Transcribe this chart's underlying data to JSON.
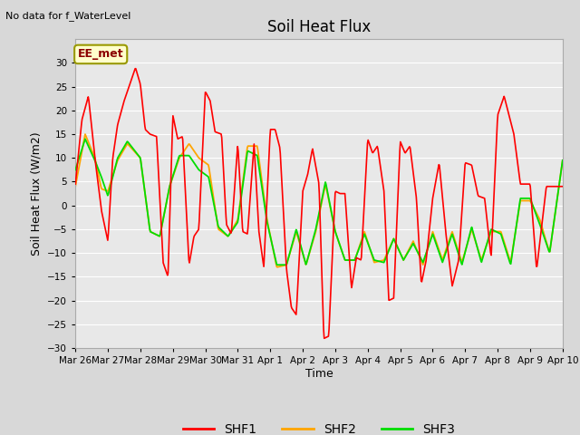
{
  "title": "Soil Heat Flux",
  "ylabel": "Soil Heat Flux (W/m2)",
  "xlabel": "Time",
  "note": "No data for f_WaterLevel",
  "annotation": "EE_met",
  "ylim": [
    -30,
    35
  ],
  "yticks": [
    -30,
    -25,
    -20,
    -15,
    -10,
    -5,
    0,
    5,
    10,
    15,
    20,
    25,
    30
  ],
  "bg_color": "#d8d8d8",
  "plot_bg_color": "#e8e8e8",
  "grid_color": "#ffffff",
  "shf1_color": "#ff0000",
  "shf2_color": "#ffa500",
  "shf3_color": "#00dd00",
  "xtick_labels": [
    "Mar 26",
    "Mar 27",
    "Mar 28",
    "Mar 29",
    "Mar 30",
    "Mar 31",
    "Apr 1",
    "Apr 2",
    "Apr 3",
    "Apr 4",
    "Apr 5",
    "Apr 6",
    "Apr 7",
    "Apr 8",
    "Apr 9",
    "Apr 10"
  ],
  "shf1_x": [
    0.0,
    0.2,
    0.4,
    0.6,
    0.8,
    1.0,
    1.15,
    1.3,
    1.5,
    1.7,
    1.85,
    2.0,
    2.15,
    2.3,
    2.5,
    2.7,
    2.85,
    3.0,
    3.15,
    3.3,
    3.5,
    3.65,
    3.8,
    4.0,
    4.15,
    4.3,
    4.5,
    4.65,
    4.8,
    5.0,
    5.15,
    5.3,
    5.5,
    5.65,
    5.8,
    6.0,
    6.15,
    6.3,
    6.5,
    6.65,
    6.8,
    7.0,
    7.15,
    7.3,
    7.5,
    7.65,
    7.8,
    8.0,
    8.15,
    8.3,
    8.5,
    8.65,
    8.8,
    9.0,
    9.15,
    9.3,
    9.5,
    9.65,
    9.8,
    10.0,
    10.15,
    10.3,
    10.5,
    10.65,
    10.8,
    11.0,
    11.2,
    11.4,
    11.6,
    11.8,
    12.0,
    12.2,
    12.4,
    12.6,
    12.8,
    13.0,
    13.2,
    13.5,
    13.7,
    14.0,
    14.2,
    14.5,
    14.7,
    15.0
  ],
  "shf1_y": [
    4.5,
    18.0,
    23.0,
    10.0,
    -1.0,
    -7.5,
    10.0,
    17.0,
    22.0,
    26.0,
    29.0,
    25.5,
    16.0,
    15.0,
    14.5,
    -12.0,
    -15.0,
    19.0,
    14.0,
    14.5,
    -12.5,
    -6.5,
    -5.0,
    24.0,
    22.0,
    15.5,
    15.0,
    -4.0,
    -6.0,
    13.0,
    -5.5,
    -6.0,
    13.0,
    -5.5,
    -13.0,
    16.0,
    16.0,
    12.0,
    -13.5,
    -21.5,
    -23.0,
    3.0,
    6.5,
    12.0,
    4.5,
    -28.0,
    -27.5,
    3.0,
    2.5,
    2.5,
    -17.5,
    -11.0,
    -11.5,
    14.0,
    11.0,
    12.5,
    3.0,
    -20.0,
    -19.5,
    13.5,
    11.0,
    12.5,
    1.5,
    -16.5,
    -11.5,
    1.5,
    9.0,
    -5.5,
    -17.0,
    -11.5,
    9.0,
    8.5,
    2.0,
    1.5,
    -11.0,
    19.0,
    23.0,
    15.0,
    4.5,
    4.5,
    -13.5,
    4.0,
    4.0,
    4.0
  ],
  "shf2_x": [
    0.0,
    0.3,
    0.6,
    0.8,
    1.0,
    1.3,
    1.6,
    2.0,
    2.3,
    2.6,
    2.9,
    3.2,
    3.5,
    3.8,
    4.1,
    4.4,
    4.7,
    5.0,
    5.3,
    5.6,
    5.9,
    6.2,
    6.5,
    6.8,
    7.1,
    7.4,
    7.7,
    8.0,
    8.3,
    8.6,
    8.9,
    9.2,
    9.5,
    9.8,
    10.1,
    10.4,
    10.7,
    11.0,
    11.3,
    11.6,
    11.9,
    12.2,
    12.5,
    12.8,
    13.1,
    13.4,
    13.7,
    14.0,
    14.3,
    14.6,
    15.0
  ],
  "shf2_y": [
    4.0,
    15.0,
    10.0,
    3.5,
    3.0,
    9.5,
    13.0,
    10.0,
    -5.5,
    -6.5,
    4.0,
    10.0,
    13.0,
    10.0,
    8.5,
    -5.0,
    -6.5,
    -3.0,
    12.5,
    12.5,
    -3.0,
    -13.0,
    -12.5,
    -5.5,
    -12.5,
    -5.5,
    4.5,
    -5.5,
    -11.5,
    -11.5,
    -5.5,
    -12.0,
    -11.5,
    -7.0,
    -11.5,
    -7.5,
    -12.5,
    -5.5,
    -11.5,
    -5.5,
    -12.0,
    -5.0,
    -11.5,
    -5.5,
    -5.5,
    -12.0,
    1.0,
    1.0,
    -3.0,
    -10.0,
    9.5
  ],
  "shf3_x": [
    0.0,
    0.3,
    0.6,
    0.8,
    1.0,
    1.3,
    1.6,
    2.0,
    2.3,
    2.6,
    2.9,
    3.2,
    3.5,
    3.8,
    4.1,
    4.4,
    4.7,
    5.0,
    5.3,
    5.6,
    5.9,
    6.2,
    6.5,
    6.8,
    7.1,
    7.4,
    7.7,
    8.0,
    8.3,
    8.6,
    8.9,
    9.2,
    9.5,
    9.8,
    10.1,
    10.4,
    10.7,
    11.0,
    11.3,
    11.6,
    11.9,
    12.2,
    12.5,
    12.8,
    13.1,
    13.4,
    13.7,
    14.0,
    14.3,
    14.6,
    15.0
  ],
  "shf3_y": [
    7.5,
    14.0,
    9.5,
    6.0,
    2.0,
    10.0,
    13.5,
    10.0,
    -5.5,
    -6.5,
    4.0,
    10.5,
    10.5,
    7.5,
    6.0,
    -4.5,
    -6.5,
    -3.5,
    11.5,
    10.5,
    -3.5,
    -12.5,
    -12.5,
    -5.0,
    -12.5,
    -5.0,
    5.0,
    -5.5,
    -11.5,
    -11.5,
    -6.0,
    -11.5,
    -12.0,
    -7.0,
    -11.5,
    -8.0,
    -12.0,
    -6.0,
    -12.0,
    -6.0,
    -12.5,
    -4.5,
    -12.0,
    -5.0,
    -6.0,
    -12.5,
    1.5,
    1.5,
    -4.0,
    -10.0,
    9.5
  ]
}
